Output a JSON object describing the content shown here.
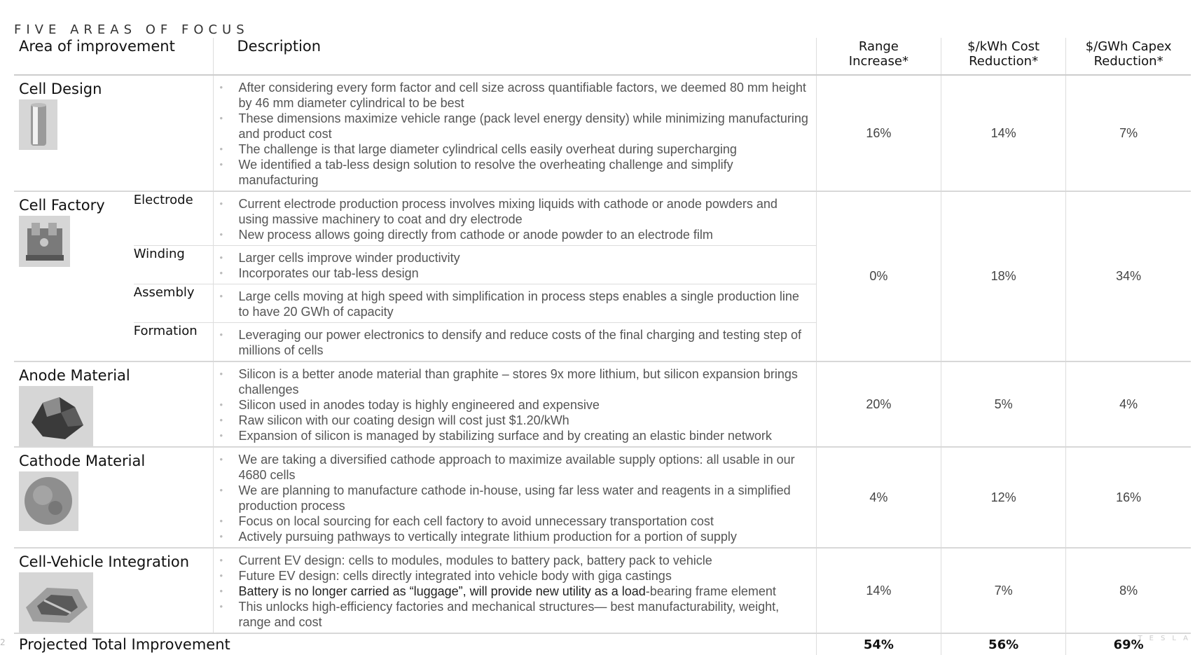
{
  "kicker": "FIVE AREAS OF FOCUS",
  "columns": {
    "area": "Area of improvement",
    "description": "Description",
    "range_l1": "Range",
    "range_l2": "Increase*",
    "cost_l1": "$/kWh Cost",
    "cost_l2": "Reduction*",
    "capex_l1": "$/GWh Capex",
    "capex_l2": "Reduction*"
  },
  "cell_design": {
    "title": "Cell Design",
    "bullets": [
      "After considering every form factor and cell size across quantifiable factors, we deemed 80 mm height by 46 mm diameter cylindrical to be best",
      "These dimensions maximize vehicle range (pack level energy density) while minimizing manufacturing and product cost",
      "The challenge is that large diameter cylindrical cells easily overheat during supercharging",
      "We identified a tab-less design solution to resolve the overheating challenge and simplify manufacturing"
    ],
    "range": "16%",
    "cost": "14%",
    "capex": "7%"
  },
  "cell_factory": {
    "title": "Cell Factory",
    "electrode": {
      "label": "Electrode",
      "bullets": [
        "Current electrode production process involves mixing liquids with cathode or anode powders and using massive machinery to coat and dry electrode",
        "New process allows going directly from cathode or anode powder to an electrode film"
      ]
    },
    "winding": {
      "label": "Winding",
      "bullets": [
        "Larger cells improve winder productivity",
        "Incorporates our tab-less design"
      ]
    },
    "assembly": {
      "label": "Assembly",
      "bullets": [
        "Large cells moving at high speed with simplification in process steps enables a single production line to have 20 GWh of capacity"
      ]
    },
    "formation": {
      "label": "Formation",
      "bullets": [
        "Leveraging our power electronics to densify and reduce costs of the final charging and testing step of millions of cells"
      ]
    },
    "range": "0%",
    "cost": "18%",
    "capex": "34%"
  },
  "anode": {
    "title": "Anode Material",
    "bullets": [
      "Silicon is a better anode material than graphite – stores 9x more lithium, but silicon expansion brings challenges",
      "Silicon used in anodes today is highly engineered and expensive",
      "Raw silicon with our coating design will cost just $1.20/kWh",
      "Expansion of silicon is managed by stabilizing surface and by creating an elastic binder network"
    ],
    "range": "20%",
    "cost": "5%",
    "capex": "4%"
  },
  "cathode": {
    "title": "Cathode Material",
    "bullets": [
      "We are taking a diversified cathode approach to maximize available supply options: all usable in our 4680 cells",
      "We are planning to manufacture cathode in-house, using far less water and reagents in a simplified production process",
      "Focus on local sourcing for each cell factory to avoid unnecessary transportation cost",
      "Actively pursuing pathways to vertically integrate lithium production for a portion of supply"
    ],
    "range": "4%",
    "cost": "12%",
    "capex": "16%"
  },
  "integration": {
    "title": "Cell-Vehicle Integration",
    "b1": "Current EV design: cells to modules, modules to battery pack, battery pack to vehicle",
    "b2": "Future EV design: cells directly integrated into vehicle body with giga castings",
    "b3_dark": "Battery is no longer carried as “luggage”, will provide new utility as a load",
    "b3_light": "-bearing frame element",
    "b4": "This unlocks high-efficiency factories and mechanical structures— best manufacturability, weight, range and cost",
    "range": "14%",
    "cost": "7%",
    "capex": "8%"
  },
  "total": {
    "label": "Projected Total Improvement",
    "range": "54%",
    "cost": "56%",
    "capex": "69%"
  },
  "footer": {
    "page": "2",
    "brand": "TESLA"
  }
}
